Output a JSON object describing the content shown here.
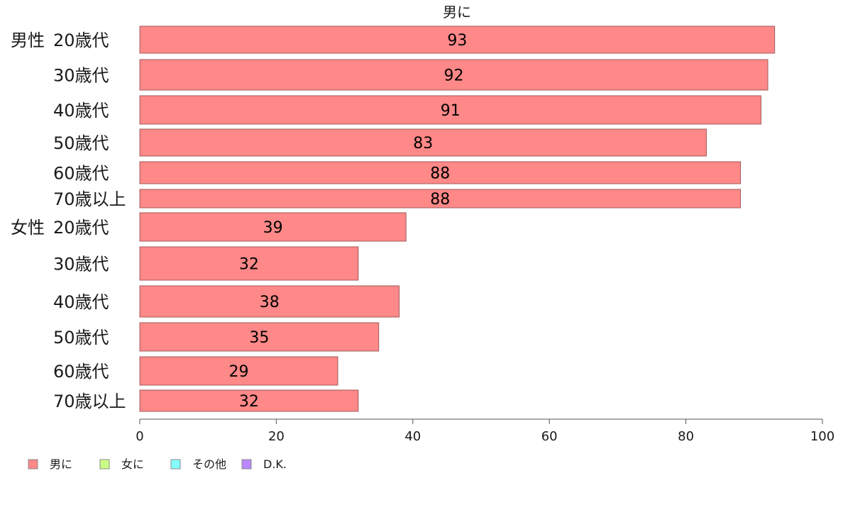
{
  "chart_data": {
    "type": "bar",
    "orientation": "horizontal",
    "title": "男に",
    "groups": [
      {
        "label": "男性",
        "categories": [
          "20歳代",
          "30歳代",
          "40歳代",
          "50歳代",
          "60歳代",
          "70歳以上"
        ],
        "values": [
          93,
          92,
          91,
          83,
          88,
          88
        ]
      },
      {
        "label": "女性",
        "categories": [
          "20歳代",
          "30歳代",
          "40歳代",
          "50歳代",
          "60歳代",
          "70歳以上"
        ],
        "values": [
          39,
          32,
          38,
          35,
          29,
          32
        ]
      }
    ],
    "series": [
      {
        "name": "男に",
        "color": "#ff8888"
      }
    ],
    "xlim": [
      0,
      100
    ],
    "xticks": [
      0,
      20,
      40,
      60,
      80,
      100
    ],
    "grid": false,
    "legend": {
      "placement": "bottom-left",
      "items": [
        {
          "label": "男に",
          "color": "#ff8888"
        },
        {
          "label": "女に",
          "color": "#ccff88"
        },
        {
          "label": "その他",
          "color": "#88ffff"
        },
        {
          "label": "D.K.",
          "color": "#bb88ff"
        }
      ]
    }
  }
}
